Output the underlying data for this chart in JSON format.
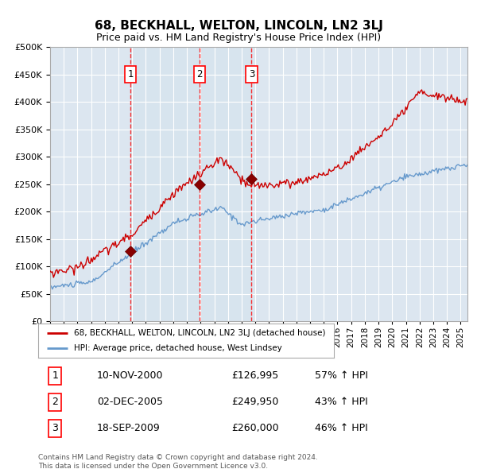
{
  "title": "68, BECKHALL, WELTON, LINCOLN, LN2 3LJ",
  "subtitle": "Price paid vs. HM Land Registry's House Price Index (HPI)",
  "sale_color": "#cc0000",
  "hpi_color": "#6699cc",
  "plot_bg_color": "#dce6f0",
  "ylim": [
    0,
    500000
  ],
  "yticks": [
    0,
    50000,
    100000,
    150000,
    200000,
    250000,
    300000,
    350000,
    400000,
    450000,
    500000
  ],
  "sales": [
    {
      "date_num": 2000.87,
      "price": 126995,
      "label": "1"
    },
    {
      "date_num": 2005.92,
      "price": 249950,
      "label": "2"
    },
    {
      "date_num": 2009.72,
      "price": 260000,
      "label": "3"
    }
  ],
  "vline_dates": [
    2000.87,
    2005.92,
    2009.72
  ],
  "legend_sale_label": "68, BECKHALL, WELTON, LINCOLN, LN2 3LJ (detached house)",
  "legend_hpi_label": "HPI: Average price, detached house, West Lindsey",
  "table_rows": [
    {
      "num": "1",
      "date": "10-NOV-2000",
      "price": "£126,995",
      "change": "57% ↑ HPI"
    },
    {
      "num": "2",
      "date": "02-DEC-2005",
      "price": "£249,950",
      "change": "43% ↑ HPI"
    },
    {
      "num": "3",
      "date": "18-SEP-2009",
      "price": "£260,000",
      "change": "46% ↑ HPI"
    }
  ],
  "footnote1": "Contains HM Land Registry data © Crown copyright and database right 2024.",
  "footnote2": "This data is licensed under the Open Government Licence v3.0."
}
